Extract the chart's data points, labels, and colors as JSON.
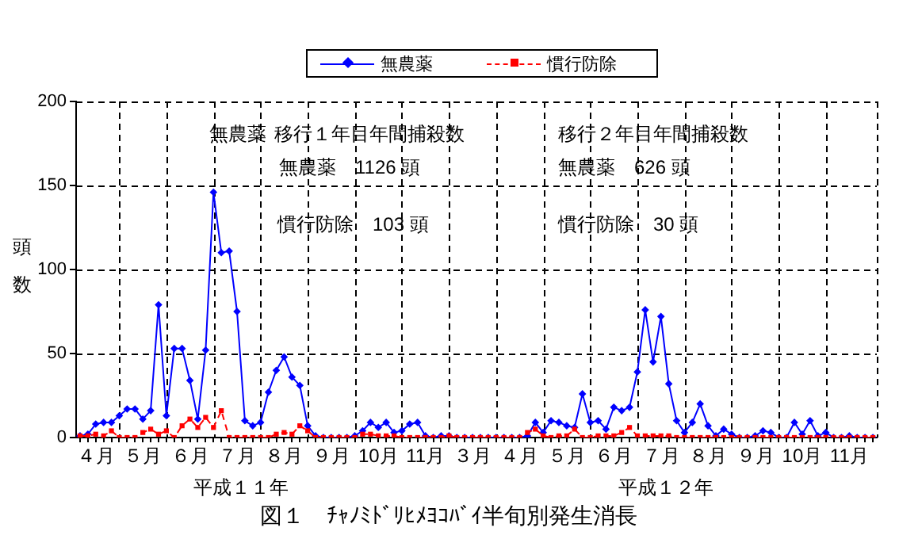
{
  "chart_data": {
    "type": "line",
    "title": "図１　ﾁｬﾉﾐﾄﾞﾘﾋﾒﾖｺﾊﾞｲ半旬別発生消長",
    "ylabel": "頭数",
    "categories": [
      null,
      null,
      "４月",
      null,
      null,
      null,
      null,
      null,
      "５月",
      null,
      null,
      null,
      null,
      null,
      "６月",
      null,
      null,
      null,
      null,
      null,
      "７月",
      null,
      null,
      null,
      null,
      null,
      "８月",
      null,
      null,
      null,
      null,
      null,
      "９月",
      null,
      null,
      null,
      null,
      null,
      "10月",
      null,
      null,
      null,
      null,
      null,
      "11月",
      null,
      null,
      null,
      null,
      null,
      "３月",
      null,
      null,
      null,
      null,
      null,
      "４月",
      null,
      null,
      null,
      null,
      null,
      "５月",
      null,
      null,
      null,
      null,
      null,
      "６月",
      null,
      null,
      null,
      null,
      null,
      "７月",
      null,
      null,
      null,
      null,
      null,
      "８月",
      null,
      null,
      null,
      null,
      null,
      "９月",
      null,
      null,
      null,
      null,
      null,
      "10月",
      null,
      null,
      null,
      null,
      null,
      "11月",
      null,
      null,
      null
    ],
    "series": [
      {
        "name": "無農薬",
        "color": "#0000ff",
        "marker": "diamond",
        "line_style": "solid",
        "values": [
          1,
          2,
          8,
          9,
          9,
          13,
          17,
          17,
          11,
          16,
          79,
          13,
          53,
          53,
          34,
          11,
          52,
          146,
          110,
          111,
          75,
          10,
          7,
          9,
          27,
          40,
          48,
          36,
          31,
          7,
          1,
          0,
          0,
          0,
          0,
          1,
          4,
          9,
          6,
          9,
          3,
          4,
          8,
          9,
          1,
          0,
          1,
          1,
          0,
          0,
          0,
          0,
          0,
          0,
          0,
          0,
          0,
          1,
          9,
          3,
          10,
          9,
          7,
          6,
          26,
          9,
          10,
          5,
          18,
          16,
          18,
          39,
          76,
          45,
          72,
          32,
          10,
          3,
          9,
          20,
          7,
          1,
          5,
          2,
          0,
          0,
          1,
          4,
          3,
          0,
          0,
          9,
          2,
          10,
          1,
          3,
          0,
          0,
          1,
          0,
          0,
          0
        ]
      },
      {
        "name": "慣行防除",
        "color": "#ff0000",
        "marker": "square",
        "line_style": "dashed",
        "values": [
          1,
          1,
          2,
          1,
          4,
          0,
          0,
          0,
          3,
          5,
          2,
          4,
          0,
          7,
          11,
          6,
          12,
          6,
          16,
          0,
          0,
          0,
          0,
          0,
          0,
          2,
          3,
          2,
          7,
          4,
          0,
          0,
          0,
          0,
          0,
          0,
          2,
          2,
          1,
          1,
          1,
          0,
          0,
          0,
          0,
          0,
          0,
          1,
          0,
          0,
          0,
          0,
          0,
          0,
          0,
          0,
          0,
          3,
          5,
          1,
          0,
          1,
          1,
          5,
          0,
          0,
          1,
          1,
          1,
          3,
          6,
          1,
          1,
          1,
          1,
          1,
          0,
          0,
          0,
          0,
          0,
          0,
          0,
          0,
          0,
          0,
          0,
          0,
          0,
          0,
          0,
          0,
          0,
          0,
          0,
          0,
          0,
          0,
          0,
          0,
          0,
          0
        ]
      }
    ],
    "ylim": [
      0,
      200
    ],
    "yticks": [
      0,
      50,
      100,
      150,
      200
    ],
    "grid": true,
    "legend": "top",
    "annotations": [
      "無農薬",
      "移行１年目年間捕殺数",
      "無農薬　1126 頭",
      "慣行防除　103 頭",
      "移行２年目年間捕殺数",
      "無農薬　626 頭",
      "慣行防除　30 頭",
      "平成１１年",
      "平成１２年"
    ]
  }
}
